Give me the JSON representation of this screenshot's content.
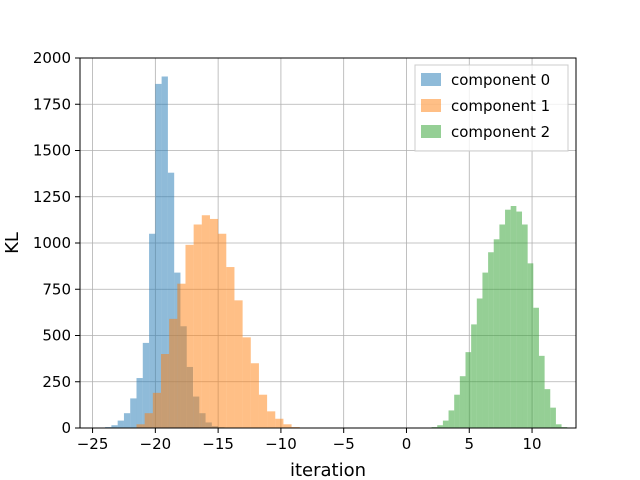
{
  "chart_data": {
    "type": "bar",
    "xlabel": "iteration",
    "ylabel": "KL",
    "xlim": [
      -26,
      13.5
    ],
    "ylim": [
      0,
      2000
    ],
    "xticks": [
      -25,
      -20,
      -15,
      -10,
      -5,
      0,
      5,
      10
    ],
    "xtick_labels": [
      "−25",
      "−20",
      "−15",
      "−10",
      "−5",
      "0",
      "5",
      "10"
    ],
    "yticks": [
      0,
      250,
      500,
      750,
      1000,
      1250,
      1500,
      1750,
      2000
    ],
    "ytick_labels": [
      "0",
      "250",
      "500",
      "750",
      "1000",
      "1250",
      "1500",
      "1750",
      "2000"
    ],
    "grid": true,
    "legend_position": "top-right",
    "series": [
      {
        "name": "component 0",
        "color": "#1f77b4",
        "opacity": 0.5,
        "bin_start": -24.0,
        "bin_width": 0.5,
        "values": [
          5,
          15,
          40,
          80,
          160,
          270,
          460,
          1050,
          1860,
          1900,
          1380,
          840,
          550,
          330,
          170,
          80,
          30,
          10,
          4
        ]
      },
      {
        "name": "component 1",
        "color": "#ff7f0e",
        "opacity": 0.5,
        "bin_start": -21.5,
        "bin_width": 0.65,
        "values": [
          20,
          80,
          190,
          400,
          590,
          780,
          990,
          1100,
          1150,
          1130,
          1050,
          870,
          690,
          490,
          350,
          180,
          90,
          50,
          20,
          5
        ]
      },
      {
        "name": "component 2",
        "color": "#2ca02c",
        "opacity": 0.5,
        "bin_start": 2.0,
        "bin_width": 0.45,
        "values": [
          5,
          15,
          40,
          95,
          180,
          280,
          410,
          560,
          700,
          840,
          950,
          1020,
          1100,
          1180,
          1200,
          1170,
          1100,
          890,
          650,
          390,
          210,
          110,
          20,
          5
        ]
      }
    ]
  }
}
